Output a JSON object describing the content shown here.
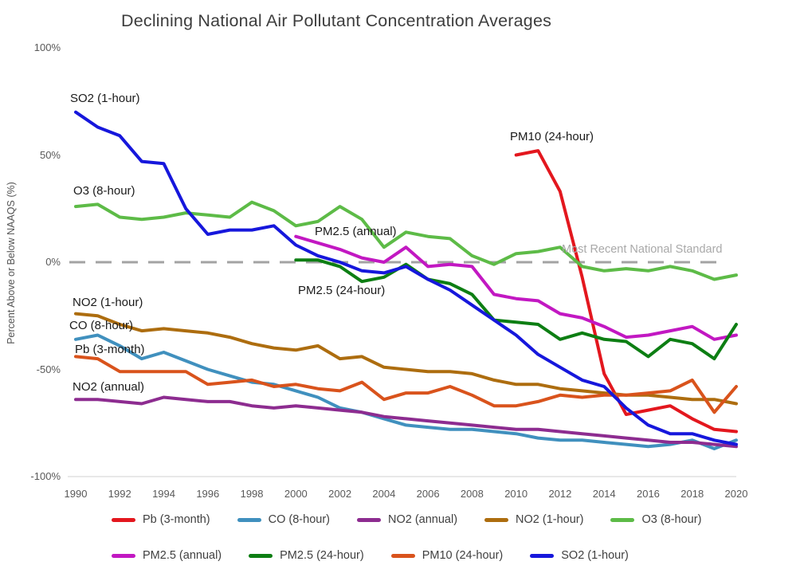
{
  "title": "Declining National Air Pollutant Concentration Averages",
  "y_axis": {
    "title": "Percent Above or Below NAAQS (%)",
    "ticks": [
      {
        "label": "100%",
        "value": 100
      },
      {
        "label": "50%",
        "value": 50
      },
      {
        "label": "0%",
        "value": 0
      },
      {
        "label": "-50%",
        "value": -50
      },
      {
        "label": "-100%",
        "value": -100
      }
    ]
  },
  "x_axis": {
    "ticks": [
      1990,
      1992,
      1994,
      1996,
      1998,
      2000,
      2002,
      2004,
      2006,
      2008,
      2010,
      2012,
      2014,
      2016,
      2018,
      2020
    ]
  },
  "annotations": [
    {
      "text": "SO2 (1-hour)"
    },
    {
      "text": "O3 (8-hour)"
    },
    {
      "text": "PM10 (24-hour)"
    },
    {
      "text": "PM2.5 (annual)"
    },
    {
      "text": "PM2.5 (24-hour)"
    },
    {
      "text": "NO2 (1-hour)"
    },
    {
      "text": "CO (8-hour)"
    },
    {
      "text": "Pb (3-month)"
    },
    {
      "text": "NO2 (annual)"
    },
    {
      "text": "Most Recent National Standard"
    }
  ],
  "chart_data": {
    "type": "line",
    "title": "Declining National Air Pollutant Concentration Averages",
    "xlabel": "",
    "ylabel": "Percent Above or Below NAAQS (%)",
    "ylim": [
      -100,
      100
    ],
    "xlim": [
      1990,
      2020
    ],
    "grid": false,
    "legend_position": "bottom",
    "reference_line": {
      "value": 0,
      "label": "Most Recent National Standard",
      "style": "dashed",
      "color": "#a3a3a3"
    },
    "x": [
      1990,
      1991,
      1992,
      1993,
      1994,
      1995,
      1996,
      1997,
      1998,
      1999,
      2000,
      2001,
      2002,
      2003,
      2004,
      2005,
      2006,
      2007,
      2008,
      2009,
      2010,
      2011,
      2012,
      2013,
      2014,
      2015,
      2016,
      2017,
      2018,
      2019,
      2020
    ],
    "series": [
      {
        "label": "Pb (3-month)",
        "color": "#e3171e",
        "values": [
          null,
          null,
          null,
          null,
          null,
          null,
          null,
          null,
          null,
          null,
          null,
          null,
          null,
          null,
          null,
          null,
          null,
          null,
          null,
          null,
          50,
          52,
          33,
          -7,
          -52,
          -71,
          -69,
          -67,
          -73,
          -78,
          -79
        ]
      },
      {
        "label": "CO (8-hour)",
        "color": "#4090be",
        "values": [
          -36,
          -34,
          -39,
          -45,
          -42,
          -46,
          -50,
          -53,
          -56,
          -57,
          -60,
          -63,
          -68,
          -70,
          -73,
          -76,
          -77,
          -78,
          -78,
          -79,
          -80,
          -82,
          -83,
          -83,
          -84,
          -85,
          -86,
          -85,
          -83,
          -87,
          -83
        ]
      },
      {
        "label": "NO2 (annual)",
        "color": "#8d2c90",
        "values": [
          -64,
          -64,
          -65,
          -66,
          -63,
          -64,
          -65,
          -65,
          -67,
          -68,
          -67,
          -68,
          -69,
          -70,
          -72,
          -73,
          -74,
          -75,
          -76,
          -77,
          -78,
          -78,
          -79,
          -80,
          -81,
          -82,
          -83,
          -84,
          -84,
          -85,
          -86
        ]
      },
      {
        "label": "NO2 (1-hour)",
        "color": "#ad6d0f",
        "values": [
          -24,
          -25,
          -29,
          -32,
          -31,
          -32,
          -33,
          -35,
          -38,
          -40,
          -41,
          -39,
          -45,
          -44,
          -49,
          -50,
          -51,
          -51,
          -52,
          -55,
          -57,
          -57,
          -59,
          -60,
          -61,
          -62,
          -62,
          -63,
          -64,
          -64,
          -66
        ]
      },
      {
        "label": "O3 (8-hour)",
        "color": "#5dbb47",
        "values": [
          26,
          27,
          21,
          20,
          21,
          23,
          22,
          21,
          28,
          24,
          17,
          19,
          26,
          20,
          7,
          14,
          12,
          11,
          3,
          -1,
          4,
          5,
          7,
          -2,
          -4,
          -3,
          -4,
          -2,
          -4,
          -8,
          -6
        ]
      },
      {
        "label": "PM2.5 (annual)",
        "color": "#c218c2",
        "values": [
          null,
          null,
          null,
          null,
          null,
          null,
          null,
          null,
          null,
          null,
          12,
          9,
          6,
          2,
          0,
          7,
          -2,
          -1,
          -2,
          -15,
          -17,
          -18,
          -24,
          -26,
          -30,
          -35,
          -34,
          -32,
          -30,
          -36,
          -34
        ]
      },
      {
        "label": "PM2.5 (24-hour)",
        "color": "#0d7e13",
        "values": [
          null,
          null,
          null,
          null,
          null,
          null,
          null,
          null,
          null,
          null,
          1,
          1,
          -2,
          -9,
          -7,
          -1,
          -8,
          -10,
          -15,
          -27,
          -28,
          -29,
          -36,
          -33,
          -36,
          -37,
          -44,
          -36,
          -38,
          -45,
          -29
        ]
      },
      {
        "label": "PM10 (24-hour)",
        "color": "#d9531c",
        "values": [
          -44,
          -45,
          -51,
          -51,
          -51,
          -51,
          -57,
          -56,
          -55,
          -58,
          -57,
          -59,
          -60,
          -56,
          -64,
          -61,
          -61,
          -58,
          -62,
          -67,
          -67,
          -65,
          -62,
          -63,
          -62,
          -62,
          -61,
          -60,
          -55,
          -70,
          -58
        ]
      },
      {
        "label": "SO2 (1-hour)",
        "color": "#1617dc",
        "values": [
          70,
          63,
          59,
          47,
          46,
          25,
          13,
          15,
          15,
          17,
          8,
          3,
          0,
          -4,
          -5,
          -2,
          -8,
          -13,
          -20,
          -27,
          -34,
          -43,
          -49,
          -55,
          -58,
          -68,
          -76,
          -80,
          -80,
          -83,
          -85
        ]
      }
    ]
  }
}
